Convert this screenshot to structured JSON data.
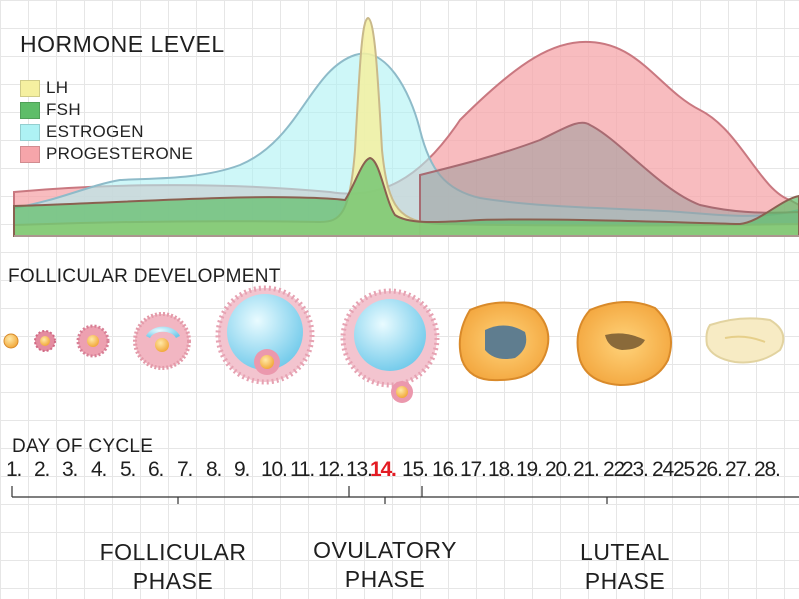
{
  "title": "HORMONE LEVEL",
  "legend": [
    {
      "label": "LH",
      "color": "#f5f0a0"
    },
    {
      "label": "FSH",
      "color": "#5ebd68"
    },
    {
      "label": "ESTROGEN",
      "color": "#aef2f4"
    },
    {
      "label": "PROGESTERONE",
      "color": "#f6a5aa"
    }
  ],
  "follicular_heading": "FOLLICULAR DEVELOPMENT",
  "day_heading": "DAY OF CYCLE",
  "days": [
    "1.",
    "2.",
    "3.",
    "4.",
    "5.",
    "6.",
    "7.",
    "8.",
    "9.",
    "10.",
    "11.",
    "12.",
    "13.",
    "14.",
    "15.",
    "16.",
    "17.",
    "18.",
    "19.",
    "20.",
    "21.",
    "22",
    "23.",
    "24",
    "25",
    "26.",
    "27.",
    "28."
  ],
  "highlight_day": "14.",
  "highlight_color": "#e31b23",
  "phases": [
    {
      "line1": "FOLLICULAR",
      "line2": "PHASE"
    },
    {
      "line1": "OVULATORY",
      "line2": "PHASE"
    },
    {
      "line1": "LUTEAL",
      "line2": "PHASE"
    }
  ]
}
